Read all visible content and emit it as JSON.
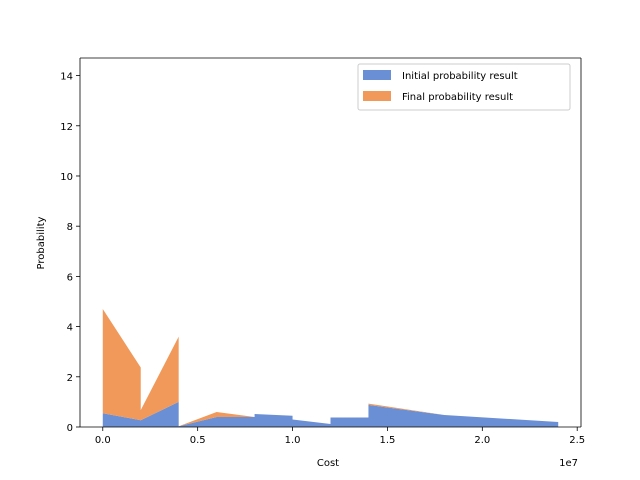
{
  "chart_data": {
    "type": "area",
    "stacked": true,
    "xlabel": "Cost",
    "ylabel": "Probability",
    "x_offset_label": "1e7",
    "xlim": [
      -1200000,
      25200000
    ],
    "ylim": [
      0,
      14.7
    ],
    "xticks": [
      0,
      5000000,
      10000000,
      15000000,
      20000000,
      25000000
    ],
    "xtick_labels": [
      "0.0",
      "0.5",
      "1.0",
      "1.5",
      "2.0",
      "2.5"
    ],
    "yticks": [
      0,
      2,
      4,
      6,
      8,
      10,
      12,
      14
    ],
    "ytick_labels": [
      "0",
      "2",
      "4",
      "6",
      "8",
      "10",
      "12",
      "14"
    ],
    "grid": false,
    "legend_position": "upper right",
    "series": [
      {
        "name": "Initial probability result",
        "color": "#6a8fd4",
        "points": [
          [
            0,
            0.55
          ],
          [
            2000000,
            0.27
          ],
          [
            4000000,
            1.0
          ],
          [
            4000001,
            0.03
          ],
          [
            6000000,
            0.4
          ],
          [
            8000000,
            0.4
          ],
          [
            8000001,
            0.52
          ],
          [
            10000000,
            0.45
          ],
          [
            10000001,
            0.3
          ],
          [
            12000000,
            0.12
          ],
          [
            12000001,
            0.38
          ],
          [
            14000000,
            0.38
          ],
          [
            14000001,
            0.88
          ],
          [
            18000000,
            0.48
          ],
          [
            24000000,
            0.2
          ]
        ]
      },
      {
        "name": "Final probability result",
        "color": "#f0995a",
        "points": [
          [
            0,
            4.15
          ],
          [
            2000000,
            2.1
          ],
          [
            2000001,
            0.4
          ],
          [
            4000000,
            2.6
          ],
          [
            4000001,
            0.0
          ],
          [
            6000000,
            0.2
          ],
          [
            8000000,
            0.0
          ],
          [
            10000000,
            0.0
          ],
          [
            12000000,
            0.0
          ],
          [
            14000000,
            0.0
          ],
          [
            14000001,
            0.05
          ],
          [
            18000000,
            0.0
          ],
          [
            24000000,
            0.0
          ]
        ]
      }
    ]
  }
}
